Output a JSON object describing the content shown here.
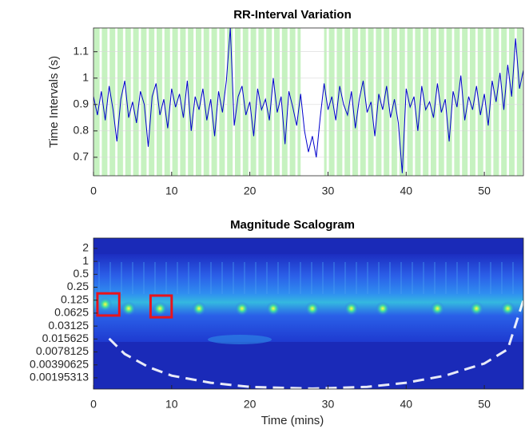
{
  "chart_data": [
    {
      "type": "line",
      "title": "RR-Interval Variation",
      "y_label": "Time Intervals (s)",
      "color": "#0000cc",
      "grid": true,
      "region_color": "#c6f2c0",
      "regions": [
        [
          0,
          26.5
        ],
        [
          29.5,
          55
        ]
      ],
      "x": [
        0,
        0.5,
        1,
        1.5,
        2,
        2.5,
        3,
        3.5,
        4,
        4.5,
        5,
        5.5,
        6,
        6.5,
        7,
        7.5,
        8,
        8.5,
        9,
        9.5,
        10,
        10.5,
        11,
        11.5,
        12,
        12.5,
        13,
        13.5,
        14,
        14.5,
        15,
        15.5,
        16,
        16.5,
        17,
        17.5,
        18,
        18.5,
        19,
        19.5,
        20,
        20.5,
        21,
        21.5,
        22,
        22.5,
        23,
        23.5,
        24,
        24.5,
        25,
        25.5,
        26,
        26.5,
        27,
        27.5,
        28,
        28.5,
        29,
        29.5,
        30,
        30.5,
        31,
        31.5,
        32,
        32.5,
        33,
        33.5,
        34,
        34.5,
        35,
        35.5,
        36,
        36.5,
        37,
        37.5,
        38,
        38.5,
        39,
        39.5,
        40,
        40.5,
        41,
        41.5,
        42,
        42.5,
        43,
        43.5,
        44,
        44.5,
        45,
        45.5,
        46,
        46.5,
        47,
        47.5,
        48,
        48.5,
        49,
        49.5,
        50,
        50.5,
        51,
        51.5,
        52,
        52.5,
        53,
        53.5,
        54,
        54.5,
        55
      ],
      "values": [
        0.93,
        0.86,
        0.95,
        0.84,
        0.97,
        0.88,
        0.76,
        0.92,
        0.99,
        0.85,
        0.91,
        0.83,
        0.95,
        0.9,
        0.74,
        0.93,
        0.98,
        0.86,
        0.92,
        0.81,
        0.96,
        0.89,
        0.94,
        0.85,
        0.99,
        0.8,
        0.93,
        0.88,
        0.96,
        0.84,
        0.92,
        0.78,
        0.95,
        0.87,
        0.99,
        1.19,
        0.82,
        0.93,
        0.97,
        0.86,
        0.91,
        0.78,
        0.96,
        0.88,
        0.92,
        0.84,
        1.0,
        0.87,
        0.93,
        0.75,
        0.95,
        0.89,
        0.82,
        0.94,
        0.8,
        0.72,
        0.78,
        0.7,
        0.85,
        0.98,
        0.88,
        0.93,
        0.84,
        0.97,
        0.9,
        0.86,
        0.95,
        0.81,
        0.92,
        0.99,
        0.87,
        0.91,
        0.78,
        0.94,
        0.88,
        0.97,
        0.85,
        0.92,
        0.83,
        0.64,
        0.96,
        0.89,
        0.93,
        0.8,
        0.97,
        0.88,
        0.91,
        0.85,
        0.98,
        0.87,
        0.92,
        0.76,
        0.95,
        0.89,
        1.01,
        0.84,
        0.93,
        0.88,
        0.97,
        0.86,
        0.94,
        0.82,
        0.99,
        0.91,
        1.02,
        0.88,
        1.05,
        0.93,
        1.15,
        0.96,
        1.03
      ],
      "xlim": [
        0,
        55
      ],
      "xticks": [
        0,
        10,
        20,
        30,
        40,
        50
      ],
      "ylim": [
        0.63,
        1.19
      ],
      "yticks": [
        0.7,
        0.8,
        0.9,
        1,
        1.1
      ]
    },
    {
      "type": "scalogram",
      "title": "Magnitude Scalogram",
      "x_label": "Time (mins)",
      "log_y": true,
      "peaks": {
        "x": [
          1.5,
          4.5,
          8.5,
          13.5,
          19,
          23,
          28,
          33,
          37,
          44,
          49,
          53
        ],
        "y": [
          0.1,
          0.08,
          0.08,
          0.08,
          0.08,
          0.08,
          0.08,
          0.08,
          0.08,
          0.08,
          0.08,
          0.08
        ]
      },
      "cone_of_influence": {
        "x": [
          2,
          4,
          7,
          10,
          15,
          20,
          28,
          35,
          40,
          45,
          50,
          53,
          55
        ],
        "y": [
          0.016,
          0.007,
          0.0035,
          0.0022,
          0.0015,
          0.0012,
          0.0011,
          0.0012,
          0.0015,
          0.0022,
          0.0042,
          0.009,
          0.125
        ]
      },
      "highlight_boxes": [
        {
          "x": [
            0.5,
            3.3
          ],
          "y": [
            0.055,
            0.18
          ]
        },
        {
          "x": [
            7.3,
            10
          ],
          "y": [
            0.05,
            0.16
          ]
        }
      ],
      "box_color": "#e8141c",
      "xlim": [
        0,
        55
      ],
      "xticks": [
        0,
        10,
        20,
        30,
        40,
        50
      ],
      "ylim": [
        0.00107,
        3.48
      ],
      "yticks": [
        2,
        1,
        0.5,
        0.25,
        0.125,
        0.0625,
        0.03125,
        0.015625,
        0.0078125,
        0.00390625,
        0.00195313
      ]
    }
  ]
}
